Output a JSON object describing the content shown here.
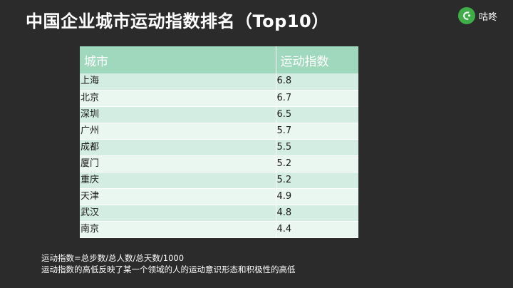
{
  "title": "中国企业城市运动指数排名（Top10）",
  "logo": {
    "icon": "guado-logo-icon",
    "text": "咕咚",
    "color": "#3fae49"
  },
  "table": {
    "headers": [
      "城市",
      "运动指数"
    ],
    "rows": [
      {
        "city": "上海",
        "index": "6.8"
      },
      {
        "city": "北京",
        "index": "6.7"
      },
      {
        "city": "深圳",
        "index": "6.5"
      },
      {
        "city": "广州",
        "index": "5.7"
      },
      {
        "city": "成都",
        "index": "5.5"
      },
      {
        "city": "厦门",
        "index": "5.2"
      },
      {
        "city": "重庆",
        "index": "5.2"
      },
      {
        "city": "天津",
        "index": "4.9"
      },
      {
        "city": "武汉",
        "index": "4.8"
      },
      {
        "city": "南京",
        "index": "4.4"
      }
    ]
  },
  "notes": [
    "运动指数=总步数/总人数/总天数/1000",
    "运动指数的高低反映了某一个领域的人的运动意识形态和积极性的高低"
  ],
  "colors": {
    "background": "#2b2b2b",
    "header": "#9fd8bd",
    "row_odd": "#d4ede2",
    "row_even": "#eaf6f0"
  }
}
